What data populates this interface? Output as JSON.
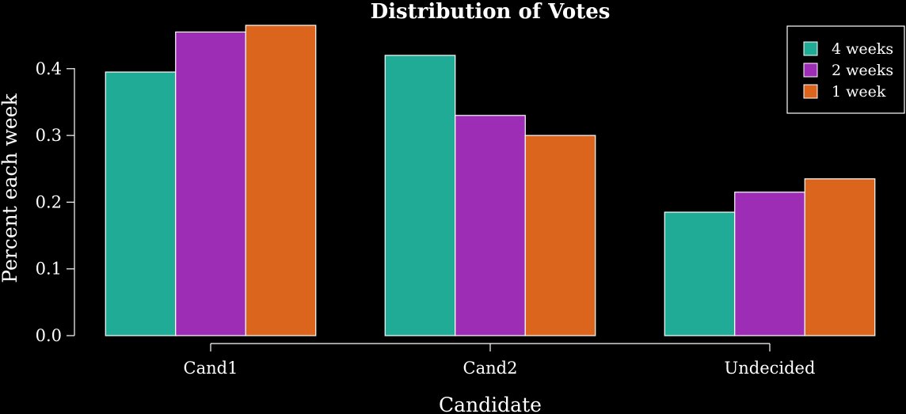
{
  "chart_data": {
    "type": "bar",
    "title": "Distribution of Votes",
    "xlabel": "Candidate",
    "ylabel": "Percent each week",
    "categories": [
      "Cand1",
      "Cand2",
      "Undecided"
    ],
    "series": [
      {
        "name": "4 weeks",
        "values": [
          0.395,
          0.42,
          0.185
        ],
        "color": "#20ab96"
      },
      {
        "name": "2 weeks",
        "values": [
          0.455,
          0.33,
          0.215
        ],
        "color": "#9e2db5"
      },
      {
        "name": "1 week",
        "values": [
          0.465,
          0.3,
          0.235
        ],
        "color": "#dc651d"
      }
    ],
    "ylim": [
      0.0,
      0.465
    ],
    "yticks": [
      "0.0",
      "0.1",
      "0.2",
      "0.3",
      "0.4"
    ],
    "grid": false,
    "legend_position": "top-right",
    "background": "#000000",
    "foreground": "#ffffff"
  }
}
